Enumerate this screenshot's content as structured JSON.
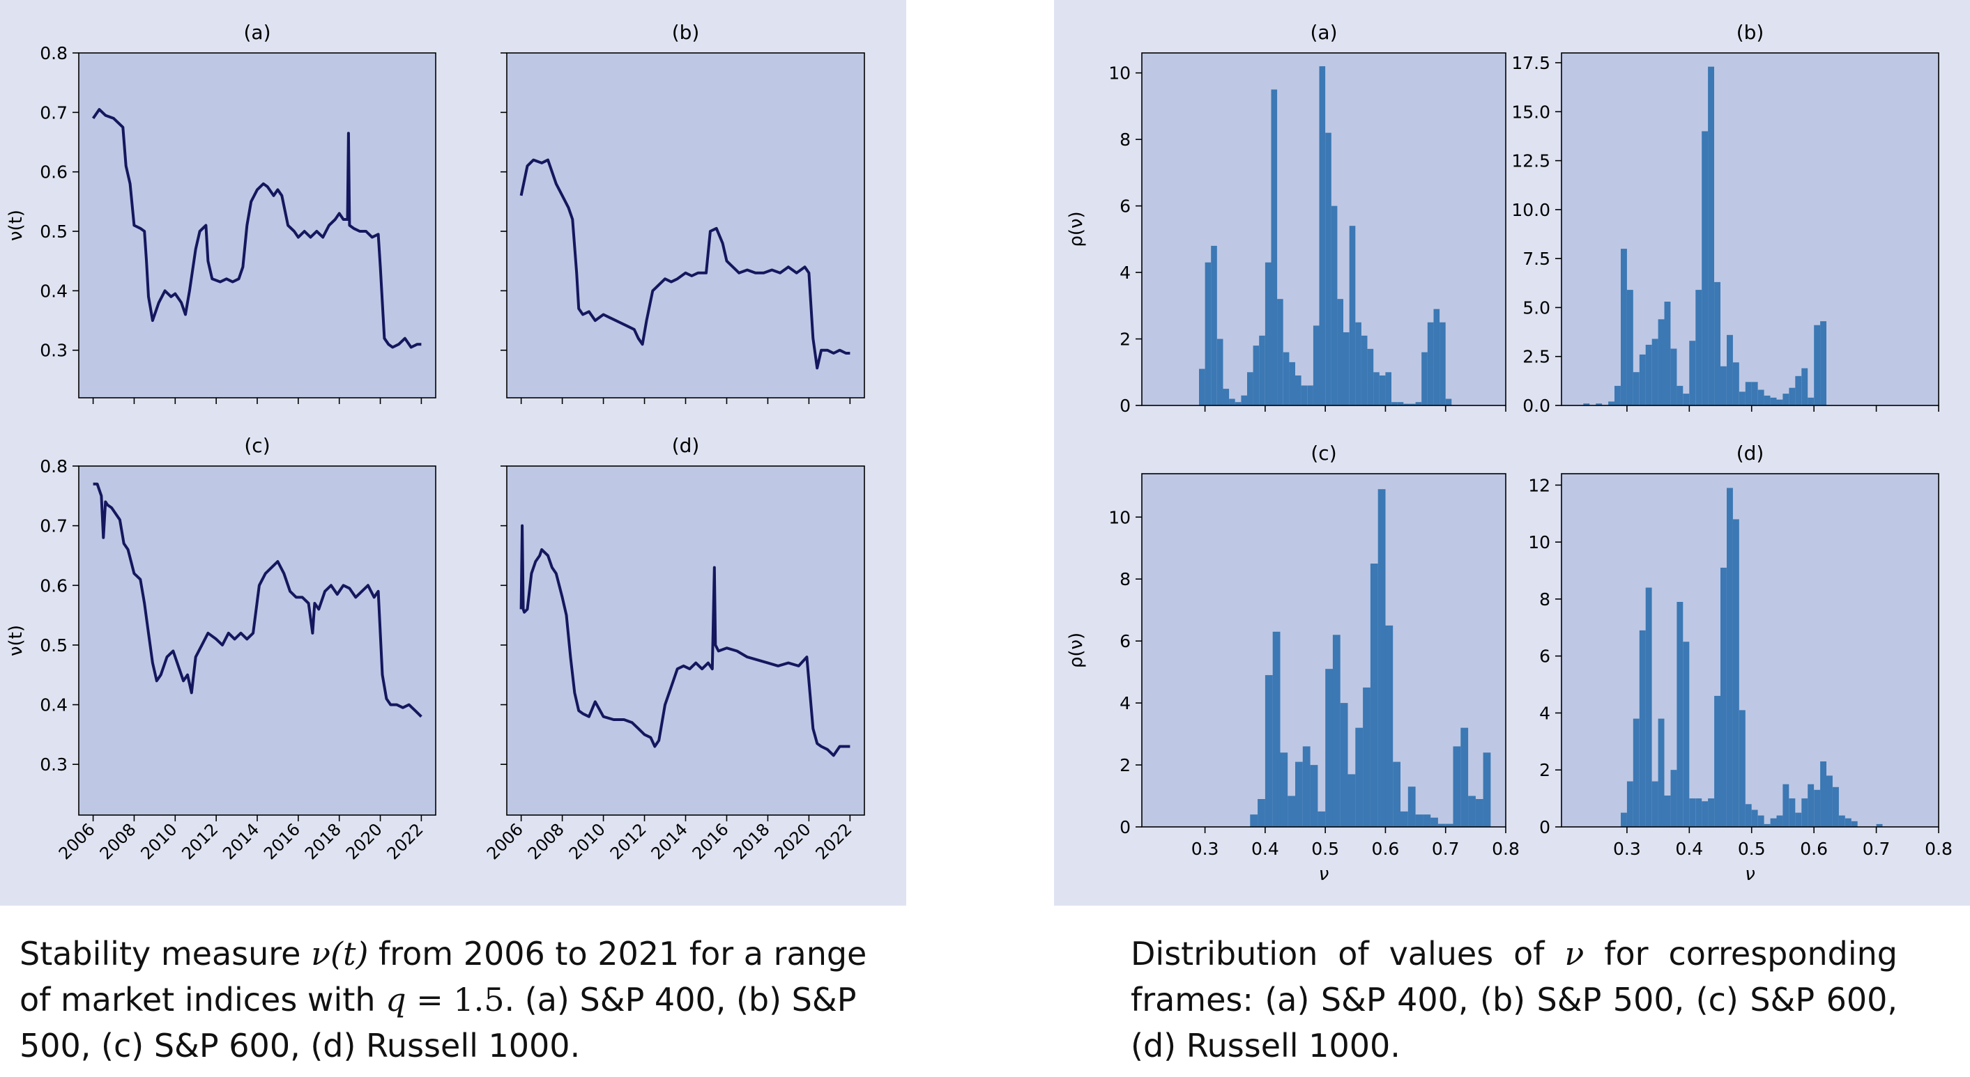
{
  "colors": {
    "panel_background": "#dfe3f1",
    "plot_background": "#bec8e4",
    "line_color": "#15175e",
    "bar_color": "#3b78b4"
  },
  "captions": {
    "left": {
      "pre": "Stability measure ",
      "math": "ν(t)",
      "mid": " from 2006 to 2021 for a range of market indices with ",
      "q_sym": "q",
      "q_eq": " = 1.5",
      "post": ". (a) S&P 400, (b) S&P 500, (c) S&P 600, (d) Russell 1000."
    },
    "right": {
      "pre": "Distribution of values of ",
      "math": "ν",
      "post": " for corresponding frames: (a) S&P 400, (b) S&P 500, (c) S&P 600, (d) Russell 1000."
    }
  },
  "chart_data": [
    {
      "id": "ts-a",
      "type": "line",
      "title": "(a)",
      "xlabel": "",
      "ylabel": "ν(t)",
      "xlim": [
        2005.3,
        2022.7
      ],
      "ylim": [
        0.22,
        0.8
      ],
      "xticks": [
        "2006",
        "2008",
        "2010",
        "2012",
        "2014",
        "2016",
        "2018",
        "2020",
        "2022"
      ],
      "yticks": [
        0.3,
        0.4,
        0.5,
        0.6,
        0.7,
        0.8
      ],
      "show_xtick_labels": false,
      "x": [
        2006.0,
        2006.3,
        2006.6,
        2007.0,
        2007.3,
        2007.45,
        2007.6,
        2007.8,
        2008.0,
        2008.3,
        2008.5,
        2008.6,
        2008.7,
        2008.8,
        2008.9,
        2009.2,
        2009.5,
        2009.8,
        2010.0,
        2010.3,
        2010.5,
        2010.7,
        2011.0,
        2011.2,
        2011.5,
        2011.6,
        2011.8,
        2012.2,
        2012.5,
        2012.8,
        2013.1,
        2013.3,
        2013.5,
        2013.7,
        2014.0,
        2014.3,
        2014.5,
        2014.8,
        2015.0,
        2015.2,
        2015.5,
        2015.8,
        2016.0,
        2016.3,
        2016.6,
        2016.9,
        2017.2,
        2017.5,
        2017.8,
        2018.0,
        2018.2,
        2018.4,
        2018.45,
        2018.5,
        2018.7,
        2019.0,
        2019.3,
        2019.6,
        2019.9,
        2020.0,
        2020.2,
        2020.4,
        2020.6,
        2020.9,
        2021.2,
        2021.5,
        2021.8,
        2022.0
      ],
      "y": [
        0.69,
        0.705,
        0.695,
        0.69,
        0.68,
        0.675,
        0.61,
        0.58,
        0.51,
        0.505,
        0.5,
        0.45,
        0.39,
        0.37,
        0.35,
        0.38,
        0.4,
        0.39,
        0.395,
        0.38,
        0.36,
        0.4,
        0.47,
        0.5,
        0.51,
        0.45,
        0.42,
        0.415,
        0.42,
        0.415,
        0.42,
        0.44,
        0.51,
        0.55,
        0.57,
        0.58,
        0.575,
        0.56,
        0.57,
        0.56,
        0.51,
        0.5,
        0.49,
        0.5,
        0.49,
        0.5,
        0.49,
        0.51,
        0.52,
        0.53,
        0.52,
        0.52,
        0.665,
        0.51,
        0.505,
        0.5,
        0.5,
        0.49,
        0.495,
        0.44,
        0.32,
        0.31,
        0.305,
        0.31,
        0.32,
        0.305,
        0.31,
        0.31
      ]
    },
    {
      "id": "ts-b",
      "type": "line",
      "title": "(b)",
      "xlabel": "",
      "ylabel": "",
      "xlim": [
        2005.3,
        2022.7
      ],
      "ylim": [
        0.22,
        0.8
      ],
      "xticks": [
        "2006",
        "2008",
        "2010",
        "2012",
        "2014",
        "2016",
        "2018",
        "2020",
        "2022"
      ],
      "yticks": [
        0.3,
        0.4,
        0.5,
        0.6,
        0.7,
        0.8
      ],
      "show_xtick_labels": false,
      "show_ytick_labels": false,
      "x": [
        2006.0,
        2006.3,
        2006.6,
        2007.0,
        2007.3,
        2007.5,
        2007.7,
        2008.0,
        2008.3,
        2008.5,
        2008.7,
        2008.8,
        2009.0,
        2009.3,
        2009.6,
        2010.0,
        2010.3,
        2010.6,
        2010.9,
        2011.2,
        2011.5,
        2011.7,
        2011.9,
        2012.1,
        2012.4,
        2012.7,
        2013.0,
        2013.3,
        2013.6,
        2014.0,
        2014.3,
        2014.6,
        2015.0,
        2015.2,
        2015.5,
        2015.8,
        2016.0,
        2016.3,
        2016.6,
        2017.0,
        2017.4,
        2017.8,
        2018.2,
        2018.6,
        2019.0,
        2019.4,
        2019.8,
        2020.0,
        2020.2,
        2020.4,
        2020.6,
        2020.9,
        2021.2,
        2021.5,
        2021.8,
        2022.0
      ],
      "y": [
        0.56,
        0.61,
        0.62,
        0.615,
        0.62,
        0.6,
        0.58,
        0.56,
        0.54,
        0.52,
        0.43,
        0.37,
        0.36,
        0.365,
        0.35,
        0.36,
        0.355,
        0.35,
        0.345,
        0.34,
        0.335,
        0.32,
        0.31,
        0.35,
        0.4,
        0.41,
        0.42,
        0.415,
        0.42,
        0.43,
        0.425,
        0.43,
        0.43,
        0.5,
        0.505,
        0.48,
        0.45,
        0.44,
        0.43,
        0.435,
        0.43,
        0.43,
        0.435,
        0.43,
        0.44,
        0.43,
        0.44,
        0.43,
        0.32,
        0.27,
        0.3,
        0.3,
        0.295,
        0.3,
        0.295,
        0.295
      ]
    },
    {
      "id": "ts-c",
      "type": "line",
      "title": "(c)",
      "xlabel": "",
      "ylabel": "ν(t)",
      "xlim": [
        2005.3,
        2022.7
      ],
      "ylim": [
        0.215,
        0.8
      ],
      "xticks": [
        "2006",
        "2008",
        "2010",
        "2012",
        "2014",
        "2016",
        "2018",
        "2020",
        "2022"
      ],
      "yticks": [
        0.3,
        0.4,
        0.5,
        0.6,
        0.7,
        0.8
      ],
      "show_xtick_labels": true,
      "x": [
        2006.0,
        2006.2,
        2006.4,
        2006.5,
        2006.6,
        2006.7,
        2006.9,
        2007.1,
        2007.3,
        2007.5,
        2007.7,
        2008.0,
        2008.3,
        2008.5,
        2008.7,
        2008.9,
        2009.1,
        2009.3,
        2009.6,
        2009.9,
        2010.2,
        2010.4,
        2010.6,
        2010.8,
        2011.0,
        2011.3,
        2011.6,
        2012.0,
        2012.3,
        2012.6,
        2012.9,
        2013.2,
        2013.5,
        2013.8,
        2014.1,
        2014.4,
        2014.7,
        2015.0,
        2015.3,
        2015.6,
        2015.9,
        2016.2,
        2016.5,
        2016.7,
        2016.8,
        2017.0,
        2017.3,
        2017.6,
        2017.9,
        2018.2,
        2018.5,
        2018.8,
        2019.1,
        2019.4,
        2019.7,
        2019.9,
        2020.1,
        2020.3,
        2020.5,
        2020.8,
        2021.1,
        2021.4,
        2021.7,
        2022.0
      ],
      "y": [
        0.77,
        0.77,
        0.75,
        0.68,
        0.74,
        0.735,
        0.73,
        0.72,
        0.71,
        0.67,
        0.66,
        0.62,
        0.61,
        0.57,
        0.52,
        0.47,
        0.44,
        0.45,
        0.48,
        0.49,
        0.46,
        0.44,
        0.45,
        0.42,
        0.48,
        0.5,
        0.52,
        0.51,
        0.5,
        0.52,
        0.51,
        0.52,
        0.51,
        0.52,
        0.6,
        0.62,
        0.63,
        0.64,
        0.62,
        0.59,
        0.58,
        0.58,
        0.57,
        0.52,
        0.57,
        0.56,
        0.59,
        0.6,
        0.585,
        0.6,
        0.595,
        0.58,
        0.59,
        0.6,
        0.58,
        0.59,
        0.45,
        0.41,
        0.4,
        0.4,
        0.395,
        0.4,
        0.39,
        0.38
      ]
    },
    {
      "id": "ts-d",
      "type": "line",
      "title": "(d)",
      "xlabel": "",
      "ylabel": "",
      "xlim": [
        2005.3,
        2022.7
      ],
      "ylim": [
        0.215,
        0.8
      ],
      "xticks": [
        "2006",
        "2008",
        "2010",
        "2012",
        "2014",
        "2016",
        "2018",
        "2020",
        "2022"
      ],
      "yticks": [
        0.3,
        0.4,
        0.5,
        0.6,
        0.7,
        0.8
      ],
      "show_xtick_labels": true,
      "show_ytick_labels": false,
      "x": [
        2006.0,
        2006.05,
        2006.1,
        2006.15,
        2006.3,
        2006.5,
        2006.7,
        2006.9,
        2007.0,
        2007.3,
        2007.5,
        2007.7,
        2008.0,
        2008.2,
        2008.4,
        2008.6,
        2008.8,
        2009.0,
        2009.3,
        2009.6,
        2010.0,
        2010.5,
        2011.0,
        2011.4,
        2011.7,
        2012.0,
        2012.3,
        2012.5,
        2012.7,
        2013.0,
        2013.3,
        2013.6,
        2013.9,
        2014.2,
        2014.5,
        2014.8,
        2015.1,
        2015.3,
        2015.4,
        2015.45,
        2015.6,
        2016.0,
        2016.5,
        2017.0,
        2017.5,
        2018.0,
        2018.5,
        2019.0,
        2019.5,
        2019.9,
        2020.2,
        2020.4,
        2020.6,
        2020.9,
        2021.2,
        2021.5,
        2021.8,
        2022.0
      ],
      "y": [
        0.56,
        0.7,
        0.56,
        0.555,
        0.56,
        0.62,
        0.64,
        0.65,
        0.66,
        0.65,
        0.63,
        0.62,
        0.58,
        0.55,
        0.48,
        0.42,
        0.39,
        0.385,
        0.38,
        0.405,
        0.38,
        0.375,
        0.375,
        0.37,
        0.36,
        0.35,
        0.345,
        0.33,
        0.34,
        0.4,
        0.43,
        0.46,
        0.465,
        0.46,
        0.47,
        0.46,
        0.47,
        0.46,
        0.63,
        0.5,
        0.49,
        0.495,
        0.49,
        0.48,
        0.475,
        0.47,
        0.465,
        0.47,
        0.465,
        0.48,
        0.36,
        0.335,
        0.33,
        0.325,
        0.315,
        0.33,
        0.33,
        0.33
      ]
    },
    {
      "id": "hist-a",
      "type": "bar",
      "title": "(a)",
      "xlabel": "",
      "ylabel": "ρ(ν)",
      "xlim": [
        0.195,
        0.8
      ],
      "ylim": [
        0,
        10.6
      ],
      "yticks": [
        0,
        2,
        4,
        6,
        8,
        10
      ],
      "bin_width": 0.01,
      "bin_start": [
        0.29,
        0.3,
        0.31,
        0.32,
        0.33,
        0.34,
        0.35,
        0.36,
        0.37,
        0.38,
        0.39,
        0.4,
        0.41,
        0.42,
        0.43,
        0.44,
        0.45,
        0.46,
        0.47,
        0.48,
        0.49,
        0.5,
        0.51,
        0.52,
        0.53,
        0.54,
        0.55,
        0.56,
        0.57,
        0.58,
        0.59,
        0.6,
        0.61,
        0.62,
        0.63,
        0.64,
        0.65,
        0.66,
        0.67,
        0.68,
        0.69,
        0.7
      ],
      "values": [
        1.1,
        4.3,
        4.8,
        2.0,
        0.5,
        0.2,
        0.1,
        0.3,
        1.0,
        1.8,
        2.1,
        4.3,
        9.5,
        3.2,
        1.6,
        1.3,
        0.9,
        0.6,
        0.6,
        2.4,
        10.2,
        8.2,
        6.0,
        3.2,
        2.2,
        5.4,
        2.5,
        2.1,
        1.7,
        1.0,
        0.9,
        1.0,
        0.1,
        0.1,
        0.05,
        0.05,
        0.1,
        1.6,
        2.5,
        2.9,
        2.5,
        0.2
      ],
      "show_xtick_labels": false
    },
    {
      "id": "hist-b",
      "type": "bar",
      "title": "(b)",
      "xlabel": "",
      "ylabel": "",
      "xlim": [
        0.195,
        0.8
      ],
      "ylim": [
        0,
        18.0
      ],
      "yticks": [
        0.0,
        2.5,
        5.0,
        7.5,
        10.0,
        12.5,
        15.0,
        17.5
      ],
      "bin_width": 0.01,
      "bin_start": [
        0.23,
        0.25,
        0.27,
        0.28,
        0.29,
        0.3,
        0.31,
        0.32,
        0.33,
        0.34,
        0.35,
        0.36,
        0.37,
        0.38,
        0.39,
        0.4,
        0.41,
        0.42,
        0.43,
        0.44,
        0.45,
        0.46,
        0.47,
        0.48,
        0.49,
        0.5,
        0.51,
        0.52,
        0.53,
        0.54,
        0.55,
        0.56,
        0.57,
        0.58,
        0.59,
        0.6,
        0.61
      ],
      "values": [
        0.1,
        0.1,
        0.2,
        1.0,
        8.0,
        5.9,
        1.7,
        2.6,
        3.1,
        3.4,
        4.4,
        5.3,
        2.9,
        1.0,
        0.6,
        3.3,
        5.9,
        14.0,
        17.3,
        6.3,
        2.0,
        3.6,
        2.2,
        0.7,
        1.2,
        1.2,
        0.8,
        0.5,
        0.4,
        0.3,
        0.6,
        0.9,
        1.5,
        1.9,
        0.4,
        4.1,
        4.3
      ],
      "show_xtick_labels": false
    },
    {
      "id": "hist-c",
      "type": "bar",
      "title": "(c)",
      "xlabel": "ν",
      "ylabel": "ρ(ν)",
      "xlim": [
        0.195,
        0.8
      ],
      "ylim": [
        0,
        11.4
      ],
      "yticks": [
        0,
        2,
        4,
        6,
        8,
        10
      ],
      "xticks": [
        0.3,
        0.4,
        0.5,
        0.6,
        0.7,
        0.8
      ],
      "bin_width": 0.0125,
      "bin_start": [
        0.375,
        0.3875,
        0.4,
        0.4125,
        0.425,
        0.4375,
        0.45,
        0.4625,
        0.475,
        0.4875,
        0.5,
        0.5125,
        0.525,
        0.5375,
        0.55,
        0.5625,
        0.575,
        0.5875,
        0.6,
        0.6125,
        0.625,
        0.6375,
        0.65,
        0.6625,
        0.675,
        0.6875,
        0.7,
        0.7125,
        0.725,
        0.7375,
        0.75,
        0.7625
      ],
      "values": [
        0.4,
        0.9,
        4.9,
        6.3,
        2.4,
        1.0,
        2.1,
        2.6,
        2.0,
        0.5,
        5.1,
        6.2,
        4.0,
        1.7,
        3.2,
        4.5,
        8.5,
        10.9,
        6.5,
        2.1,
        0.5,
        1.3,
        0.4,
        0.4,
        0.3,
        0.1,
        0.1,
        2.6,
        3.2,
        1.0,
        0.9,
        2.4
      ],
      "show_xtick_labels": true
    },
    {
      "id": "hist-d",
      "type": "bar",
      "title": "(d)",
      "xlabel": "ν",
      "ylabel": "",
      "xlim": [
        0.195,
        0.8
      ],
      "ylim": [
        0,
        12.4
      ],
      "yticks": [
        0,
        2,
        4,
        6,
        8,
        10,
        12
      ],
      "xticks": [
        0.3,
        0.4,
        0.5,
        0.6,
        0.7,
        0.8
      ],
      "bin_width": 0.01,
      "bin_start": [
        0.29,
        0.3,
        0.31,
        0.32,
        0.33,
        0.34,
        0.35,
        0.36,
        0.37,
        0.38,
        0.39,
        0.4,
        0.41,
        0.42,
        0.43,
        0.44,
        0.45,
        0.46,
        0.47,
        0.48,
        0.49,
        0.5,
        0.51,
        0.52,
        0.53,
        0.54,
        0.55,
        0.56,
        0.57,
        0.58,
        0.59,
        0.6,
        0.61,
        0.62,
        0.63,
        0.64,
        0.65,
        0.66,
        0.7
      ],
      "values": [
        0.5,
        1.6,
        3.8,
        6.9,
        8.4,
        1.6,
        3.8,
        1.1,
        2.0,
        7.9,
        6.5,
        1.0,
        1.0,
        0.9,
        1.0,
        4.6,
        9.1,
        11.9,
        10.8,
        4.1,
        0.8,
        0.6,
        0.4,
        0.1,
        0.3,
        0.4,
        1.5,
        1.0,
        0.5,
        1.0,
        1.5,
        1.3,
        2.3,
        1.8,
        1.4,
        0.4,
        0.3,
        0.2,
        0.1
      ],
      "show_xtick_labels": true
    }
  ]
}
